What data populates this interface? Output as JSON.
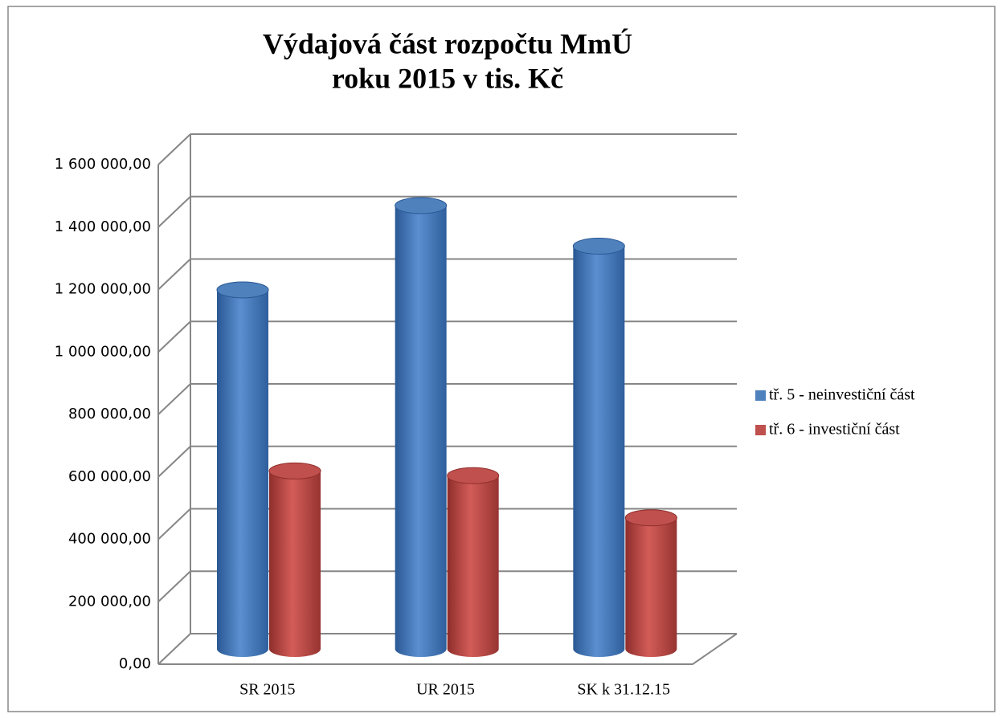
{
  "chart_data": {
    "type": "bar3d",
    "title": [
      "Výdajová část rozpočtu MmÚ",
      "roku 2015 v tis. Kč"
    ],
    "categories": [
      "SR 2015",
      "UR 2015",
      "SK k 31.12.15"
    ],
    "series": [
      {
        "name": "tř. 5 - neinvestiční část",
        "color": "#4f81bd",
        "values": [
          1150000,
          1420000,
          1290000
        ]
      },
      {
        "name": "tř. 6 - investiční část",
        "color": "#c0504d",
        "values": [
          570000,
          555000,
          420000
        ]
      }
    ],
    "ylim": [
      0,
      1600000
    ],
    "yticks": [
      {
        "value": 0,
        "label": "0,00"
      },
      {
        "value": 200000,
        "label": "200 000,00"
      },
      {
        "value": 400000,
        "label": "400 000,00"
      },
      {
        "value": 600000,
        "label": "600 000,00"
      },
      {
        "value": 800000,
        "label": "800 000,00"
      },
      {
        "value": 1000000,
        "label": "1 000 000,00"
      },
      {
        "value": 1200000,
        "label": "1 200 000,00"
      },
      {
        "value": 1400000,
        "label": "1 400 000,00"
      },
      {
        "value": 1600000,
        "label": "1 600 000,00"
      }
    ],
    "grid": true,
    "legend": "right"
  }
}
